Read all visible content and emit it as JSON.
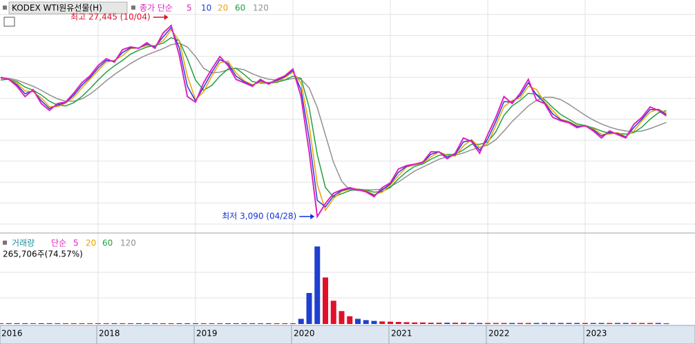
{
  "chart_data": {
    "type": "stock",
    "title": "KODEX WTI원유선물(H)",
    "legend_label": "종가 단순",
    "categories": [
      "2016",
      null,
      null,
      null,
      null,
      null,
      null,
      null,
      null,
      null,
      null,
      null,
      "2018",
      null,
      null,
      null,
      null,
      null,
      null,
      null,
      null,
      null,
      null,
      null,
      "2019",
      null,
      null,
      null,
      null,
      null,
      null,
      null,
      null,
      null,
      null,
      null,
      "2020",
      null,
      null,
      null,
      null,
      null,
      null,
      null,
      null,
      null,
      null,
      null,
      "2021",
      null,
      null,
      null,
      null,
      null,
      null,
      null,
      null,
      null,
      null,
      null,
      "2022",
      null,
      null,
      null,
      null,
      null,
      null,
      null,
      null,
      null,
      null,
      null,
      "2023",
      null,
      null,
      null,
      null,
      null,
      null,
      null,
      null,
      null,
      null
    ],
    "ylim": [
      1700,
      30700
    ],
    "series": [
      {
        "name": "5",
        "color": "#e020c0",
        "values": [
          20850,
          20580,
          19700,
          18390,
          19270,
          17500,
          16630,
          17500,
          17680,
          18830,
          20150,
          21030,
          22340,
          23220,
          22780,
          24370,
          24720,
          24540,
          25250,
          24540,
          26480,
          27445,
          23660,
          18390,
          17680,
          20150,
          21900,
          23490,
          22340,
          20580,
          20150,
          19700,
          20580,
          19970,
          20580,
          21030,
          21900,
          18390,
          11350,
          3090,
          4750,
          6070,
          6510,
          6780,
          6510,
          6240,
          5630,
          6780,
          7390,
          9150,
          9590,
          9770,
          10030,
          11350,
          11350,
          10470,
          11170,
          13110,
          12670,
          11170,
          13550,
          15750,
          18390,
          17500,
          18830,
          20580,
          17940,
          17500,
          15750,
          15310,
          15050,
          14430,
          14700,
          14010,
          13110,
          14010,
          13550,
          13110,
          14870,
          15750,
          17070,
          16630,
          15920
        ]
      },
      {
        "name": "10",
        "color": "#1f3fd0",
        "values": [
          20780,
          20620,
          19900,
          18750,
          19140,
          17850,
          16870,
          17300,
          17620,
          18570,
          19830,
          20820,
          22020,
          23010,
          22890,
          23990,
          24610,
          24570,
          25080,
          24720,
          25990,
          27170,
          24580,
          19700,
          17840,
          19580,
          21450,
          23100,
          22620,
          20990,
          20280,
          19800,
          20390,
          20090,
          20440,
          20920,
          21700,
          19250,
          13080,
          5150,
          4330,
          5740,
          6410,
          6690,
          6560,
          6320,
          5770,
          6490,
          7250,
          8730,
          9500,
          9740,
          9970,
          11030,
          11350,
          10690,
          10990,
          12610,
          12790,
          11540,
          12980,
          15230,
          17750,
          17700,
          18520,
          20140,
          18620,
          17600,
          16180,
          15410,
          15130,
          14570,
          14650,
          14160,
          13360,
          13810,
          13680,
          13210,
          14440,
          15530,
          16740,
          16720,
          16110
        ]
      },
      {
        "name": "20",
        "color": "#f0a000",
        "values": [
          20700,
          20650,
          20100,
          19100,
          19000,
          18200,
          17100,
          17100,
          17550,
          18300,
          19500,
          20600,
          21700,
          22800,
          23000,
          23600,
          24500,
          24600,
          24900,
          24900,
          25500,
          26900,
          25500,
          21000,
          18000,
          19000,
          21000,
          22700,
          22900,
          21400,
          20400,
          19900,
          20200,
          20200,
          20300,
          20800,
          21500,
          20100,
          14800,
          7200,
          3900,
          5400,
          6300,
          6600,
          6600,
          6400,
          5900,
          6200,
          7100,
          8300,
          9400,
          9700,
          9900,
          10700,
          11350,
          10900,
          10800,
          12100,
          12900,
          11900,
          12400,
          14700,
          17100,
          17900,
          18200,
          19700,
          19300,
          17700,
          16600,
          15500,
          15200,
          14700,
          14600,
          14300,
          13600,
          13600,
          13800,
          13300,
          14000,
          15300,
          16400,
          16800,
          16300
        ]
      },
      {
        "name": "60",
        "color": "#20a040",
        "values": [
          20500,
          20600,
          20300,
          19600,
          19200,
          18600,
          17800,
          17300,
          17200,
          17600,
          18400,
          19400,
          20500,
          21500,
          22300,
          23000,
          23800,
          24300,
          24700,
          24900,
          25200,
          25900,
          25500,
          23200,
          20500,
          19200,
          19800,
          21000,
          21900,
          22000,
          21200,
          20300,
          20100,
          20100,
          20200,
          20500,
          21000,
          20700,
          17000,
          11000,
          6800,
          5600,
          6000,
          6400,
          6600,
          6500,
          6200,
          6300,
          6800,
          7900,
          8800,
          9500,
          9800,
          10400,
          10900,
          11000,
          11000,
          11600,
          12300,
          12300,
          12600,
          13900,
          16000,
          17200,
          17900,
          18800,
          18700,
          18000,
          17000,
          16100,
          15500,
          14900,
          14700,
          14400,
          14000,
          13700,
          13700,
          13600,
          13800,
          14500,
          15500,
          16300,
          16600
        ]
      },
      {
        "name": "120",
        "color": "#909090",
        "values": [
          20800,
          20700,
          20500,
          20100,
          19700,
          19200,
          18600,
          18100,
          17800,
          17800,
          18100,
          18700,
          19500,
          20400,
          21200,
          21900,
          22600,
          23200,
          23700,
          24100,
          24500,
          25000,
          25200,
          24700,
          23500,
          22000,
          21400,
          21500,
          21800,
          22000,
          21800,
          21300,
          20900,
          20600,
          20500,
          20500,
          20700,
          20600,
          19500,
          17000,
          13500,
          10000,
          7600,
          6500,
          6400,
          6500,
          6500,
          6600,
          6900,
          7500,
          8200,
          8900,
          9400,
          9900,
          10400,
          10700,
          10900,
          11200,
          11600,
          11900,
          12200,
          12900,
          14000,
          15200,
          16200,
          17200,
          17900,
          18300,
          18300,
          18000,
          17400,
          16700,
          16000,
          15400,
          14900,
          14500,
          14200,
          14000,
          13900,
          14000,
          14300,
          14700,
          15100
        ]
      }
    ],
    "annotations": [
      {
        "text": "최고 27,445 (10/04)",
        "color": "#e0102a"
      },
      {
        "text": "최저 3,090 (04/28)",
        "color": "#1030e0"
      }
    ],
    "volume": {
      "title": "거래량",
      "legend_label": "단순",
      "ma_labels": [
        {
          "name": "5",
          "color": "#e020c0"
        },
        {
          "name": "20",
          "color": "#f0a000"
        },
        {
          "name": "60",
          "color": "#20a040"
        },
        {
          "name": "120",
          "color": "#909090"
        }
      ],
      "current_label": "265,706주(74.57%)",
      "ylim": [
        0,
        32000000
      ],
      "values": [
        300000,
        300000,
        300000,
        300000,
        300000,
        300000,
        300000,
        300000,
        300000,
        300000,
        300000,
        300000,
        300000,
        300000,
        300000,
        300000,
        300000,
        300000,
        300000,
        300000,
        300000,
        300000,
        300000,
        300000,
        300000,
        300000,
        300000,
        300000,
        300000,
        300000,
        300000,
        300000,
        300000,
        300000,
        300000,
        300000,
        300000,
        2000000,
        12000000,
        30000000,
        18000000,
        9000000,
        5000000,
        3000000,
        2000000,
        1500000,
        1200000,
        1000000,
        900000,
        800000,
        700000,
        600000,
        600000,
        500000,
        500000,
        500000,
        500000,
        500000,
        400000,
        400000,
        400000,
        400000,
        400000,
        400000,
        400000,
        400000,
        400000,
        400000,
        400000,
        400000,
        400000,
        400000,
        400000,
        400000,
        400000,
        400000,
        400000,
        400000,
        400000,
        400000,
        400000,
        400000,
        265706
      ]
    }
  }
}
